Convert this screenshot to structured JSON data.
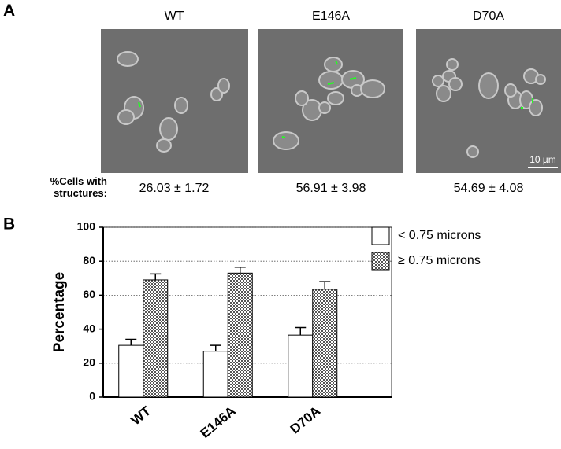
{
  "panel_a": {
    "label": "A",
    "row_label": "%Cells with structures:",
    "scale_bar": "10 µm",
    "images": [
      {
        "title": "WT",
        "stat": "26.03 ± 1.72"
      },
      {
        "title": "E146A",
        "stat": "56.91 ± 3.98"
      },
      {
        "title": "D70A",
        "stat": "54.69 ± 4.08"
      }
    ]
  },
  "chart_data": {
    "type": "bar",
    "panel_label": "B",
    "y_label": "Percentage",
    "categories": [
      "WT",
      "E146A",
      "D70A"
    ],
    "series": [
      {
        "name": "< 0.75 microns",
        "color": "#ffffff",
        "values": [
          30.5,
          27,
          36.5
        ],
        "errors": [
          3.5,
          3.5,
          4.5
        ]
      },
      {
        "name": "≥ 0.75 microns",
        "color": "#555555",
        "values": [
          69,
          73,
          63.5
        ],
        "errors": [
          3.5,
          3.5,
          4.5
        ]
      }
    ],
    "ylim": [
      0,
      100
    ],
    "yticks": [
      0,
      20,
      40,
      60,
      80,
      100
    ],
    "grid": true
  }
}
